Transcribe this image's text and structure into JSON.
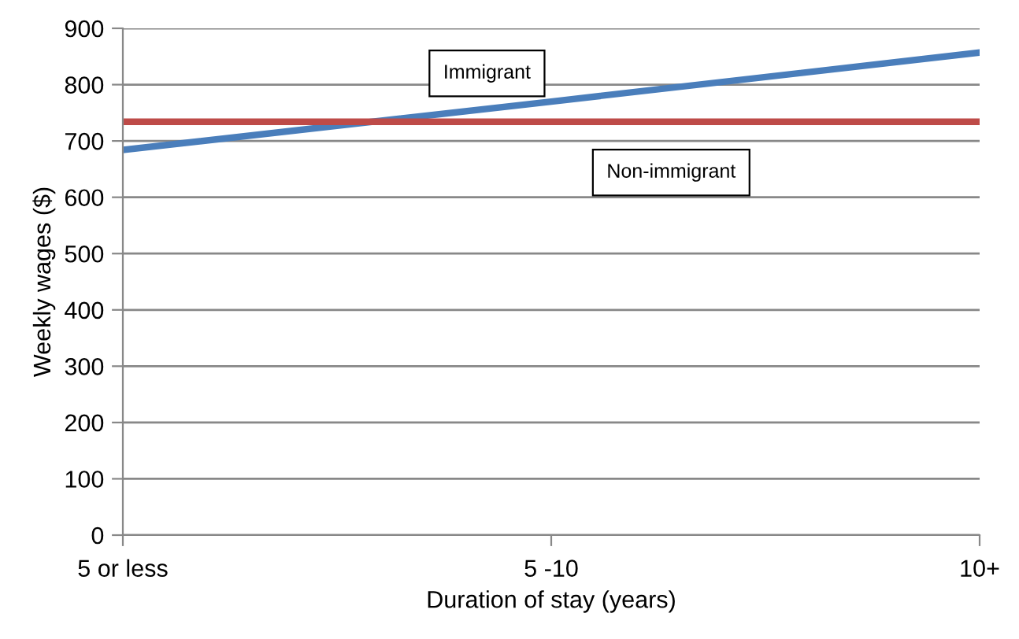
{
  "chart_data": {
    "type": "line",
    "xlabel": "Duration of stay (years)",
    "ylabel": "Weekly wages ($)",
    "categories": [
      "5 or less",
      "5 -10",
      "10+"
    ],
    "series": [
      {
        "name": "Immigrant",
        "color": "#4a7ebb",
        "values": [
          684,
          770,
          857
        ]
      },
      {
        "name": "Non-immigrant",
        "color": "#be4b48",
        "values": [
          734,
          734,
          734
        ]
      }
    ],
    "ylim": [
      0,
      900
    ],
    "yticks": [
      0,
      100,
      200,
      300,
      400,
      500,
      600,
      700,
      800,
      900
    ],
    "grid": "y",
    "legend": false,
    "marker": "none",
    "line_style": "solid"
  }
}
